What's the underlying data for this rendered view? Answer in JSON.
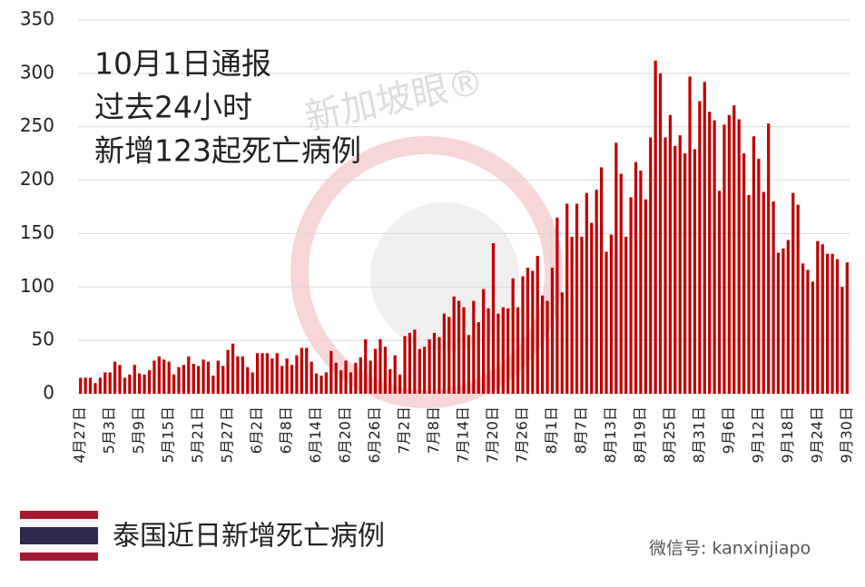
{
  "chart_data": {
    "type": "bar",
    "annotation": [
      "10月1日通报",
      "过去24小时",
      "新增123起死亡病例"
    ],
    "caption": "泰国近日新增死亡病例",
    "watermark": "新加坡眼®",
    "source": "微信号: kanxinjiapo",
    "color": "#c00000",
    "grid": true,
    "ylim": [
      0,
      350
    ],
    "yticks": [
      0,
      50,
      100,
      150,
      200,
      250,
      300,
      350
    ],
    "categories": [
      "4月27日",
      null,
      null,
      null,
      null,
      null,
      "5月3日",
      null,
      null,
      null,
      null,
      null,
      "5月9日",
      null,
      null,
      null,
      null,
      null,
      "5月15日",
      null,
      null,
      null,
      null,
      null,
      "5月21日",
      null,
      null,
      null,
      null,
      null,
      "5月27日",
      null,
      null,
      null,
      null,
      null,
      "6月2日",
      null,
      null,
      null,
      null,
      null,
      "6月8日",
      null,
      null,
      null,
      null,
      null,
      "6月14日",
      null,
      null,
      null,
      null,
      null,
      "6月20日",
      null,
      null,
      null,
      null,
      null,
      "6月26日",
      null,
      null,
      null,
      null,
      null,
      "7月2日",
      null,
      null,
      null,
      null,
      null,
      "7月8日",
      null,
      null,
      null,
      null,
      null,
      "7月14日",
      null,
      null,
      null,
      null,
      null,
      "7月20日",
      null,
      null,
      null,
      null,
      null,
      "7月26日",
      null,
      null,
      null,
      null,
      null,
      "8月1日",
      null,
      null,
      null,
      null,
      null,
      "8月7日",
      null,
      null,
      null,
      null,
      null,
      "8月13日",
      null,
      null,
      null,
      null,
      null,
      "8月19日",
      null,
      null,
      null,
      null,
      null,
      "8月25日",
      null,
      null,
      null,
      null,
      null,
      "8月31日",
      null,
      null,
      null,
      null,
      null,
      "9月6日",
      null,
      null,
      null,
      null,
      null,
      "9月12日",
      null,
      null,
      null,
      null,
      null,
      "9月18日",
      null,
      null,
      null,
      null,
      null,
      "9月24日",
      null,
      null,
      null,
      null,
      null,
      "9月30日"
    ],
    "values": [
      15,
      15,
      15,
      10,
      15,
      20,
      20,
      30,
      27,
      15,
      18,
      27,
      19,
      18,
      22,
      31,
      35,
      32,
      30,
      18,
      25,
      27,
      35,
      28,
      26,
      32,
      30,
      17,
      31,
      26,
      41,
      47,
      35,
      35,
      25,
      20,
      38,
      38,
      38,
      33,
      38,
      26,
      33,
      27,
      36,
      43,
      43,
      30,
      19,
      17,
      20,
      40,
      29,
      22,
      31,
      20,
      29,
      34,
      51,
      31,
      42,
      51,
      44,
      23,
      36,
      18,
      54,
      57,
      60,
      42,
      44,
      51,
      57,
      53,
      75,
      72,
      91,
      87,
      81,
      55,
      87,
      67,
      98,
      80,
      141,
      75,
      81,
      80,
      108,
      81,
      110,
      118,
      115,
      129,
      92,
      87,
      118,
      165,
      95,
      178,
      147,
      178,
      147,
      188,
      160,
      191,
      212,
      133,
      149,
      235,
      206,
      147,
      184,
      217,
      209,
      182,
      240,
      312,
      300,
      240,
      261,
      232,
      242,
      225,
      297,
      229,
      274,
      292,
      264,
      256,
      190,
      252,
      261,
      270,
      257,
      225,
      186,
      241,
      220,
      189,
      253,
      180,
      132,
      136,
      144,
      188,
      177,
      122,
      116,
      105,
      143,
      140,
      131,
      131,
      126,
      100,
      123
    ]
  }
}
